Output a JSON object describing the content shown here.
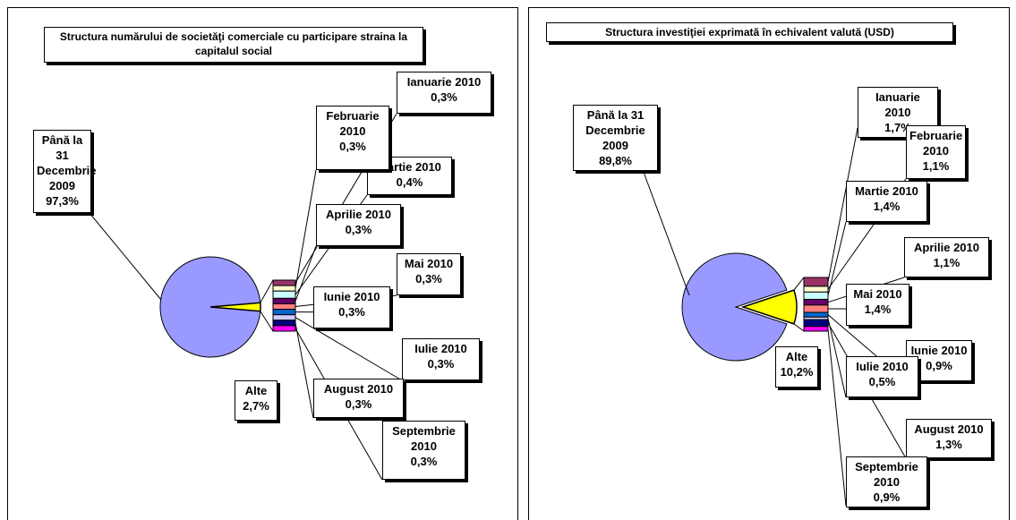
{
  "chart_data": [
    {
      "type": "pie",
      "title": "Structura numărului de societăţi comerciale cu participare straina la capitalul social",
      "categories": [
        "Până la 31 Decembrie 2009",
        "Alte"
      ],
      "values": [
        97.3,
        2.7
      ],
      "value_labels": [
        "97,3%",
        "2,7%"
      ],
      "colors": [
        "#9999ff",
        "#ffff00"
      ],
      "breakdown": {
        "categories": [
          "Ianuarie 2010",
          "Februarie 2010",
          "Martie 2010",
          "Aprilie 2010",
          "Mai 2010",
          "Iunie 2010",
          "Iulie 2010",
          "August 2010",
          "Septembrie 2010"
        ],
        "values": [
          0.3,
          0.3,
          0.4,
          0.3,
          0.3,
          0.3,
          0.3,
          0.3,
          0.3
        ],
        "value_labels": [
          "0,3%",
          "0,3%",
          "0,4%",
          "0,3%",
          "0,3%",
          "0,3%",
          "0,3%",
          "0,3%",
          "0,3%"
        ],
        "colors": [
          "#993366",
          "#ffffcc",
          "#ccffff",
          "#660066",
          "#ff8080",
          "#0066cc",
          "#ccccff",
          "#000080",
          "#ff00ff"
        ]
      }
    },
    {
      "type": "pie",
      "title": "Structura investiţiei exprimată în echivalent valută (USD)",
      "categories": [
        "Până la 31 Decembrie 2009",
        "Alte"
      ],
      "values": [
        89.8,
        10.2
      ],
      "value_labels": [
        "89,8%",
        "10,2%"
      ],
      "colors": [
        "#9999ff",
        "#ffff00"
      ],
      "breakdown": {
        "categories": [
          "Ianuarie 2010",
          "Februarie 2010",
          "Martie 2010",
          "Aprilie 2010",
          "Mai 2010",
          "Iunie 2010",
          "Iulie 2010",
          "August 2010",
          "Septembrie 2010"
        ],
        "values": [
          1.7,
          1.1,
          1.4,
          1.1,
          1.4,
          0.9,
          0.5,
          1.3,
          0.9
        ],
        "value_labels": [
          "1,7%",
          "1,1%",
          "1,4%",
          "1,1%",
          "1,4%",
          "0,9%",
          "0,5%",
          "1,3%",
          "0,9%"
        ],
        "colors": [
          "#993366",
          "#ffffcc",
          "#ccffff",
          "#660066",
          "#ff8080",
          "#0066cc",
          "#ccccff",
          "#000080",
          "#ff00ff"
        ]
      }
    }
  ]
}
